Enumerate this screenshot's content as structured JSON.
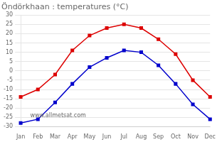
{
  "chart_data": {
    "type": "line",
    "title": "Öndörkhaan : temperatures (°C)",
    "categories": [
      "Jan",
      "Feb",
      "Mar",
      "Apr",
      "May",
      "Jun",
      "Jul",
      "Aug",
      "Sep",
      "Oct",
      "Nov",
      "Dec"
    ],
    "series": [
      {
        "color": "#dd0000",
        "marker": "square",
        "values": [
          -14,
          -10,
          -2,
          11,
          19,
          23,
          25,
          23,
          17,
          9,
          -5,
          -14
        ]
      },
      {
        "color": "#0000cc",
        "marker": "square",
        "values": [
          -28,
          -26,
          -17,
          -7,
          2,
          7,
          11,
          10,
          3,
          -7,
          -18,
          -26
        ]
      }
    ],
    "ylim": [
      -30,
      30
    ],
    "yticks": [
      -30,
      -25,
      -20,
      -15,
      -10,
      -5,
      0,
      5,
      10,
      15,
      20,
      25,
      30
    ],
    "grid": "y",
    "annotations": [
      "www.allmetsat.com"
    ]
  }
}
